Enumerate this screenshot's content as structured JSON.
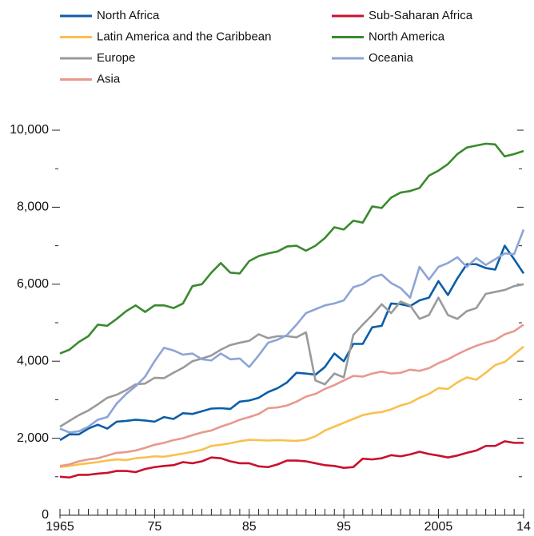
{
  "chart_data": {
    "type": "line",
    "x": [
      1965,
      1966,
      1967,
      1968,
      1969,
      1970,
      1971,
      1972,
      1973,
      1974,
      1975,
      1976,
      1977,
      1978,
      1979,
      1980,
      1981,
      1982,
      1983,
      1984,
      1985,
      1986,
      1987,
      1988,
      1989,
      1990,
      1991,
      1992,
      1993,
      1994,
      1995,
      1996,
      1997,
      1998,
      1999,
      2000,
      2001,
      2002,
      2003,
      2004,
      2005,
      2006,
      2007,
      2008,
      2009,
      2010,
      2011,
      2012,
      2013,
      2014
    ],
    "xlim": [
      1965,
      2014
    ],
    "xticks": [
      1965,
      {
        "value": 1975,
        "label": "75"
      },
      {
        "value": 1985,
        "label": "85"
      },
      {
        "value": 1995,
        "label": "95"
      },
      2005,
      {
        "value": 2014,
        "label": "14"
      }
    ],
    "ylim": [
      0,
      10000
    ],
    "yticks": [
      0,
      {
        "value": 2000,
        "label": "2,000"
      },
      {
        "value": 4000,
        "label": "4,000"
      },
      {
        "value": 6000,
        "label": "6,000"
      },
      {
        "value": 8000,
        "label": "8,000"
      },
      {
        "value": 10000,
        "label": "10,000"
      }
    ],
    "grid": false,
    "series": [
      {
        "name": "North Africa",
        "color": "#0b5ea8",
        "values": [
          1950,
          2100,
          2100,
          2250,
          2350,
          2250,
          2430,
          2450,
          2480,
          2460,
          2430,
          2550,
          2500,
          2650,
          2630,
          2700,
          2770,
          2780,
          2760,
          2950,
          2980,
          3050,
          3200,
          3300,
          3450,
          3700,
          3680,
          3650,
          3850,
          4200,
          4000,
          4450,
          4450,
          4880,
          4920,
          5500,
          5480,
          5430,
          5580,
          5650,
          6080,
          5720,
          6150,
          6520,
          6520,
          6420,
          6380,
          7000,
          6650,
          6280
        ]
      },
      {
        "name": "Sub-Saharan Africa",
        "color": "#c8102e",
        "values": [
          1000,
          980,
          1050,
          1050,
          1080,
          1100,
          1150,
          1150,
          1120,
          1200,
          1250,
          1280,
          1300,
          1380,
          1350,
          1400,
          1500,
          1480,
          1400,
          1350,
          1350,
          1270,
          1250,
          1320,
          1420,
          1420,
          1400,
          1350,
          1300,
          1280,
          1230,
          1250,
          1470,
          1450,
          1480,
          1560,
          1530,
          1580,
          1650,
          1590,
          1550,
          1500,
          1550,
          1620,
          1680,
          1800,
          1800,
          1920,
          1880,
          1880
        ]
      },
      {
        "name": "Latin America and the Caribbean",
        "color": "#f9c04e",
        "values": [
          1250,
          1280,
          1320,
          1350,
          1380,
          1420,
          1450,
          1430,
          1480,
          1500,
          1530,
          1520,
          1560,
          1600,
          1650,
          1700,
          1800,
          1830,
          1870,
          1920,
          1960,
          1950,
          1940,
          1950,
          1940,
          1930,
          1960,
          2050,
          2200,
          2300,
          2400,
          2500,
          2600,
          2650,
          2680,
          2750,
          2850,
          2920,
          3050,
          3150,
          3300,
          3280,
          3450,
          3580,
          3520,
          3700,
          3900,
          3980,
          4180,
          4380
        ]
      },
      {
        "name": "North America",
        "color": "#3a8a2e",
        "values": [
          4200,
          4300,
          4500,
          4650,
          4950,
          4920,
          5100,
          5300,
          5450,
          5280,
          5450,
          5450,
          5380,
          5500,
          5950,
          6000,
          6300,
          6550,
          6300,
          6280,
          6600,
          6730,
          6800,
          6850,
          6980,
          7000,
          6870,
          7000,
          7200,
          7480,
          7420,
          7650,
          7600,
          8020,
          7980,
          8250,
          8380,
          8420,
          8500,
          8820,
          8950,
          9120,
          9380,
          9550,
          9600,
          9650,
          9630,
          9320,
          9380,
          9460
        ]
      },
      {
        "name": "Europe",
        "color": "#9a9a9a",
        "values": [
          2300,
          2450,
          2600,
          2720,
          2880,
          3050,
          3130,
          3250,
          3400,
          3420,
          3570,
          3560,
          3700,
          3830,
          4000,
          4070,
          4150,
          4300,
          4420,
          4480,
          4530,
          4700,
          4600,
          4650,
          4650,
          4620,
          4750,
          3500,
          3400,
          3680,
          3580,
          4680,
          4950,
          5200,
          5480,
          5250,
          5550,
          5450,
          5100,
          5200,
          5650,
          5200,
          5100,
          5300,
          5380,
          5750,
          5800,
          5850,
          5950,
          6000
        ]
      },
      {
        "name": "Oceania",
        "color": "#8da4d6",
        "values": [
          2250,
          2150,
          2180,
          2300,
          2480,
          2550,
          2900,
          3150,
          3350,
          3600,
          4000,
          4350,
          4280,
          4170,
          4200,
          4050,
          4020,
          4200,
          4050,
          4070,
          3850,
          4150,
          4480,
          4560,
          4680,
          4950,
          5250,
          5350,
          5450,
          5500,
          5580,
          5920,
          6000,
          6180,
          6250,
          6030,
          5900,
          5650,
          6450,
          6120,
          6450,
          6550,
          6700,
          6450,
          6680,
          6500,
          6650,
          6800,
          6780,
          7420
        ]
      },
      {
        "name": "Asia",
        "color": "#e8998d",
        "values": [
          1280,
          1320,
          1400,
          1450,
          1480,
          1550,
          1620,
          1640,
          1680,
          1750,
          1830,
          1880,
          1950,
          2000,
          2080,
          2150,
          2200,
          2300,
          2380,
          2480,
          2550,
          2630,
          2780,
          2800,
          2850,
          2950,
          3080,
          3150,
          3280,
          3380,
          3500,
          3620,
          3600,
          3680,
          3730,
          3680,
          3700,
          3780,
          3750,
          3820,
          3950,
          4050,
          4180,
          4300,
          4400,
          4480,
          4550,
          4700,
          4780,
          4950
        ]
      }
    ]
  }
}
